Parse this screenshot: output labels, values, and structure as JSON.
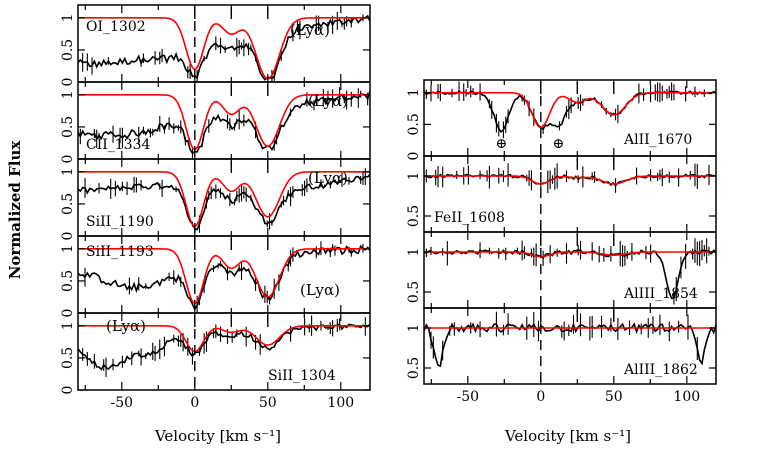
{
  "chart_data": {
    "type": "line",
    "ylabel": "Normalized Flux",
    "xlabel": "Velocity [km s⁻¹]",
    "xlim": [
      -80,
      120
    ],
    "xticks": [
      -50,
      0,
      50,
      100
    ],
    "component_velocities": [
      0,
      25,
      50
    ],
    "panels": [
      {
        "label": "OI_1302",
        "column": "left",
        "ylim": [
          0,
          1.2
        ],
        "yticks": [
          "0",
          "0.5",
          "1"
        ],
        "annotation": "(Lyα)",
        "annotation_pos": "upper-right",
        "fit": {
          "components": [
            {
              "v": 0,
              "depth": 0.8,
              "width": 6
            },
            {
              "v": 25,
              "depth": 0.25,
              "width": 6
            },
            {
              "v": 50,
              "depth": 0.95,
              "width": 8
            }
          ]
        },
        "data": {
          "baseline": 0.35,
          "noise": 0.12,
          "lya_features": [
            {
              "v": -60,
              "depth": 0.3,
              "width": 20
            },
            {
              "v": -20,
              "depth": 0.3,
              "width": 15
            }
          ]
        }
      },
      {
        "label": "CII_1334",
        "column": "left",
        "ylim": [
          0,
          1.2
        ],
        "yticks": [
          "0",
          "0.5",
          "1"
        ],
        "annotation": "(Lyα)",
        "annotation_pos": "upper-right",
        "fit": {
          "components": [
            {
              "v": 0,
              "depth": 0.85,
              "width": 6
            },
            {
              "v": 25,
              "depth": 0.3,
              "width": 6
            },
            {
              "v": 50,
              "depth": 0.8,
              "width": 8
            }
          ]
        },
        "data": {
          "baseline": 0.45,
          "noise": 0.12,
          "lya_features": [
            {
              "v": -50,
              "depth": 0.3,
              "width": 25
            }
          ]
        }
      },
      {
        "label": "SiII_1190",
        "column": "left",
        "ylim": [
          0,
          1.2
        ],
        "yticks": [
          "0",
          "0.5",
          "1"
        ],
        "annotation": "(Lyα)",
        "annotation_pos": "upper-right",
        "fit": {
          "components": [
            {
              "v": 0,
              "depth": 0.85,
              "width": 6
            },
            {
              "v": 25,
              "depth": 0.3,
              "width": 6
            },
            {
              "v": 50,
              "depth": 0.7,
              "width": 8
            }
          ]
        },
        "data": {
          "baseline": 0.7,
          "noise": 0.1,
          "lya_features": [
            {
              "v": 70,
              "depth": 0.2,
              "width": 30
            }
          ]
        }
      },
      {
        "label": "SiII_1193",
        "column": "left",
        "ylim": [
          0,
          1.2
        ],
        "yticks": [
          "0",
          "0.5",
          "1"
        ],
        "annotation": "(Lyα)",
        "annotation_pos": "lower-right",
        "fit": {
          "components": [
            {
              "v": 0,
              "depth": 0.85,
              "width": 6
            },
            {
              "v": 25,
              "depth": 0.3,
              "width": 6
            },
            {
              "v": 50,
              "depth": 0.75,
              "width": 8
            }
          ]
        },
        "data": {
          "baseline": 0.75,
          "noise": 0.12,
          "lya_features": [
            {
              "v": -40,
              "depth": 0.5,
              "width": 25
            }
          ]
        }
      },
      {
        "label": "SiII_1304",
        "column": "left",
        "ylim": [
          0,
          1.2
        ],
        "yticks": [
          "0",
          "0.5",
          "1"
        ],
        "annotation": "(Lyα)",
        "annotation_pos": "upper-left",
        "fit": {
          "components": [
            {
              "v": 0,
              "depth": 0.4,
              "width": 6
            },
            {
              "v": 25,
              "depth": 0.1,
              "width": 6
            },
            {
              "v": 50,
              "depth": 0.3,
              "width": 8
            }
          ]
        },
        "data": {
          "baseline": 0.85,
          "noise": 0.08,
          "lya_features": [
            {
              "v": -60,
              "depth": 0.6,
              "width": 15
            },
            {
              "v": -30,
              "depth": 0.3,
              "width": 10
            }
          ]
        }
      },
      {
        "label": "AlII_1670",
        "column": "right",
        "ylim": [
          0,
          1.2
        ],
        "yticks": [
          "0",
          "0.5",
          "1"
        ],
        "annotation": "⊕",
        "annotation_pos": "none",
        "markers": [
          {
            "v": -27,
            "text": "⊕"
          },
          {
            "v": 12,
            "text": "⊕"
          }
        ],
        "fit": {
          "components": [
            {
              "v": 0,
              "depth": 0.55,
              "width": 6
            },
            {
              "v": 25,
              "depth": 0.15,
              "width": 6
            },
            {
              "v": 50,
              "depth": 0.35,
              "width": 8
            }
          ]
        },
        "data": {
          "baseline": 1.0,
          "noise": 0.05,
          "lya_features": [
            {
              "v": -27,
              "depth": 0.6,
              "width": 5
            },
            {
              "v": 12,
              "depth": 0.5,
              "width": 5
            }
          ]
        }
      },
      {
        "label": "FeII_1608",
        "column": "right",
        "ylim": [
          0.3,
          1.25
        ],
        "yticks": [
          "0.5",
          "1"
        ],
        "annotation": "",
        "annotation_pos": "none",
        "fit": {
          "components": [
            {
              "v": 0,
              "depth": 0.1,
              "width": 6
            },
            {
              "v": 25,
              "depth": 0.02,
              "width": 6
            },
            {
              "v": 50,
              "depth": 0.1,
              "width": 8
            }
          ]
        },
        "data": {
          "baseline": 1.0,
          "noise": 0.04,
          "lya_features": []
        }
      },
      {
        "label": "AlIII_1854",
        "column": "right",
        "ylim": [
          0.3,
          1.25
        ],
        "yticks": [
          "0.5",
          "1"
        ],
        "annotation": "",
        "annotation_pos": "none",
        "fit": {
          "components": [
            {
              "v": 0,
              "depth": 0.06,
              "width": 6
            },
            {
              "v": 50,
              "depth": 0.04,
              "width": 8
            }
          ]
        },
        "data": {
          "baseline": 1.0,
          "noise": 0.05,
          "lya_features": [
            {
              "v": 90,
              "depth": 0.6,
              "width": 4
            }
          ]
        }
      },
      {
        "label": "AlIII_1862",
        "column": "right",
        "ylim": [
          0.3,
          1.25
        ],
        "yticks": [
          "0.5",
          "1"
        ],
        "annotation": "",
        "annotation_pos": "none",
        "fit": {
          "components": []
        },
        "data": {
          "baseline": 1.0,
          "noise": 0.1,
          "lya_features": [
            {
              "v": -70,
              "depth": 0.5,
              "width": 3
            },
            {
              "v": 110,
              "depth": 0.4,
              "width": 3
            }
          ]
        }
      }
    ]
  }
}
